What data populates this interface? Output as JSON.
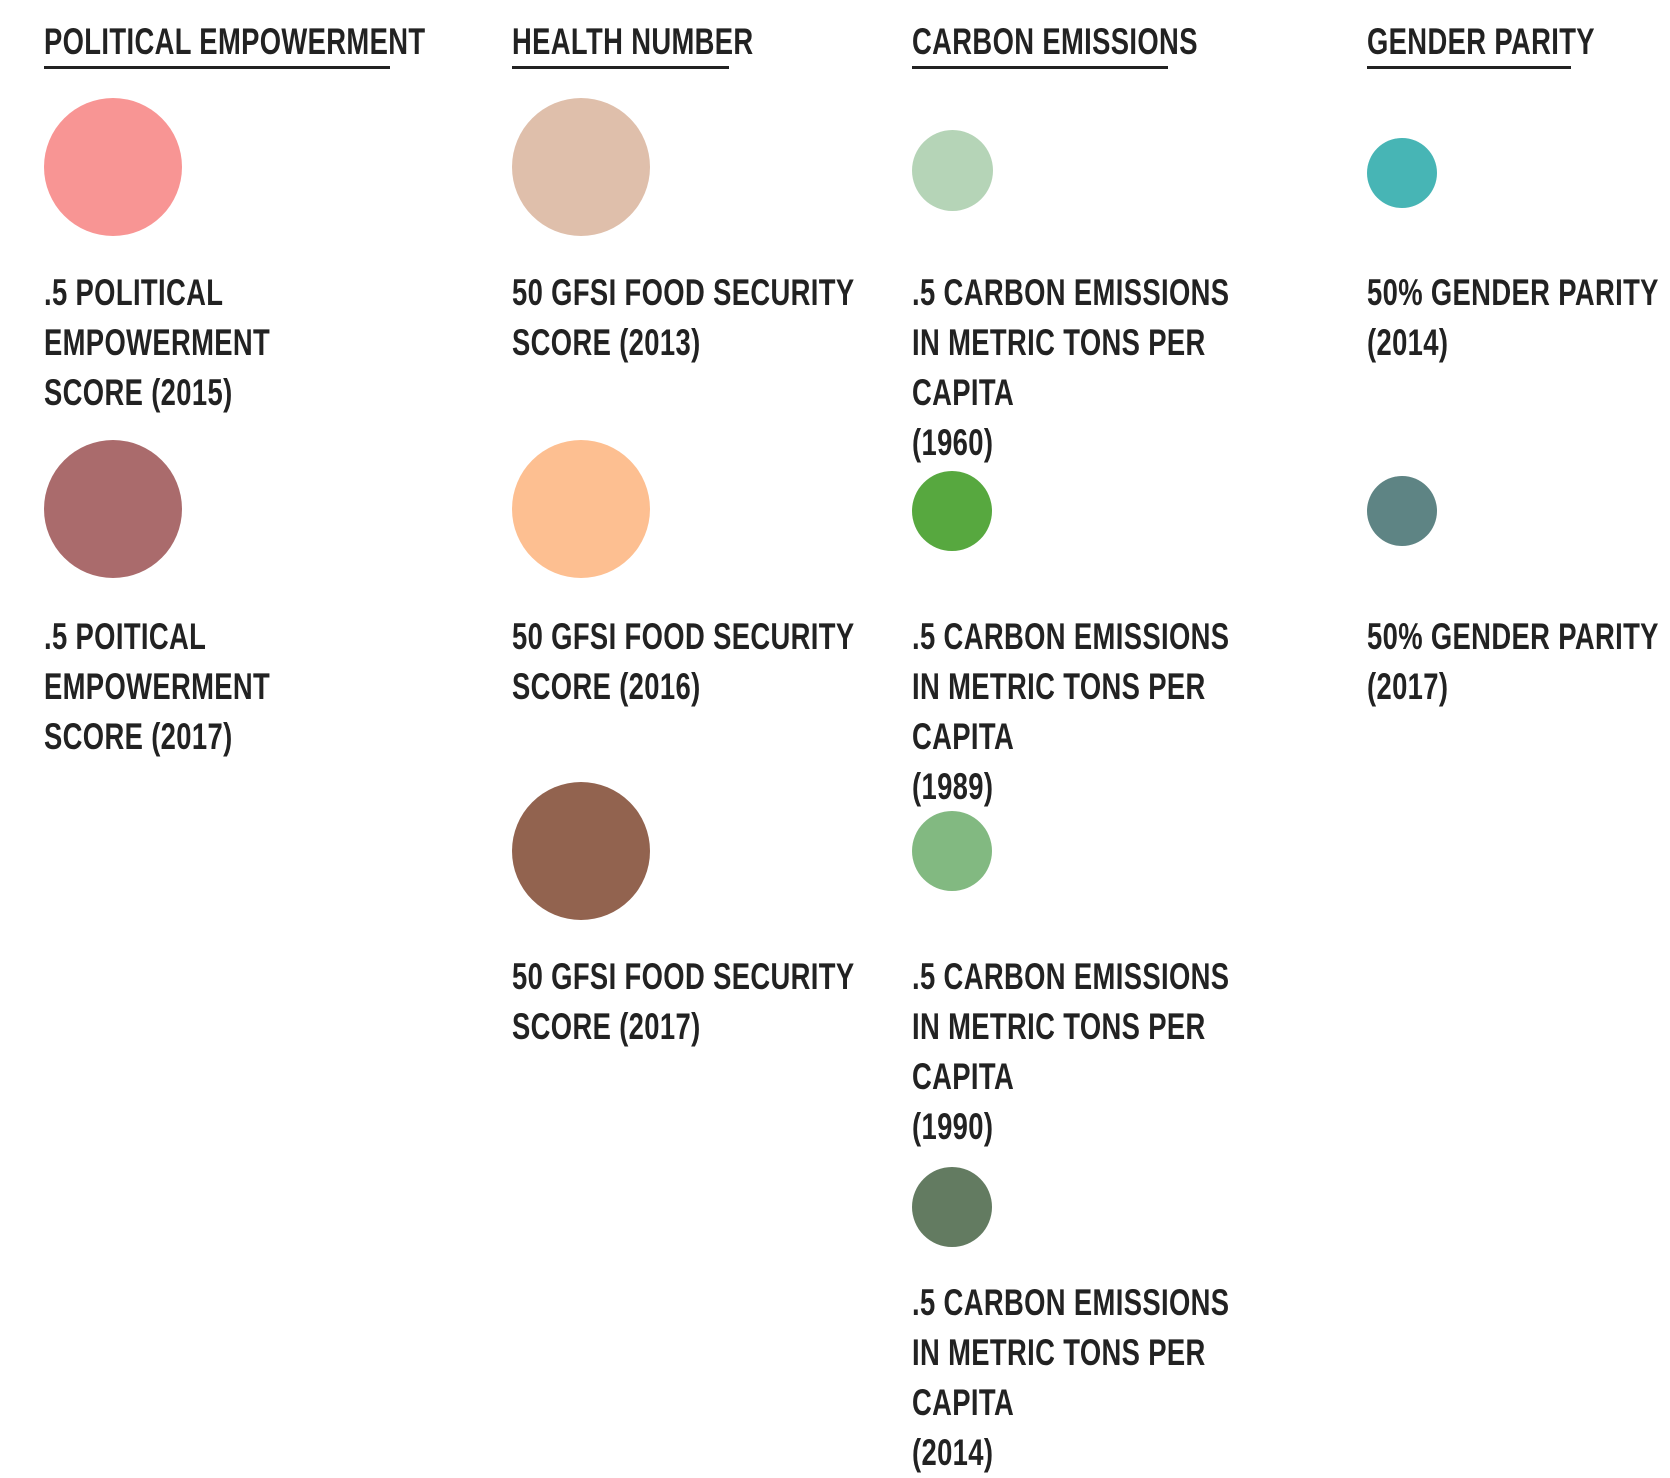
{
  "columns": [
    {
      "heading": "POLITICAL EMPOWERMENT",
      "items": [
        {
          "label": ".5 POLITICAL EMPOWERMENT\nSCORE (2015)",
          "color": "#f89594"
        },
        {
          "label": ".5 POITICAL EMPOWERMENT\nSCORE (2017)",
          "color": "#aa6b6c"
        }
      ]
    },
    {
      "heading": "HEALTH NUMBER",
      "items": [
        {
          "label": "50 GFSI FOOD SECURITY\nSCORE (2013)",
          "color": "#dfbfab"
        },
        {
          "label": "50 GFSI FOOD SECURITY\nSCORE (2016)",
          "color": "#fdbf91"
        },
        {
          "label": "50 GFSI FOOD SECURITY\nSCORE (2017)",
          "color": "#92634f"
        }
      ]
    },
    {
      "heading": "CARBON EMISSIONS",
      "items": [
        {
          "label": ".5 CARBON EMISSIONS\nIN METRIC TONS PER CAPITA\n(1960)",
          "color": "#b5d4b7"
        },
        {
          "label": ".5 CARBON EMISSIONS\nIN METRIC TONS PER CAPITA\n(1989)",
          "color": "#57a83f"
        },
        {
          "label": ".5 CARBON EMISSIONS\nIN METRIC TONS PER CAPITA\n(1990)",
          "color": "#82b981"
        },
        {
          "label": ".5 CARBON EMISSIONS\nIN METRIC TONS PER CAPITA\n(2014)",
          "color": "#637b61"
        }
      ]
    },
    {
      "heading": "GENDER PARITY",
      "items": [
        {
          "label": "50% GENDER PARITY\n(2014)",
          "color": "#47b5b5"
        },
        {
          "label": "50% GENDER PARITY\n(2017)",
          "color": "#5e8484"
        }
      ]
    }
  ]
}
